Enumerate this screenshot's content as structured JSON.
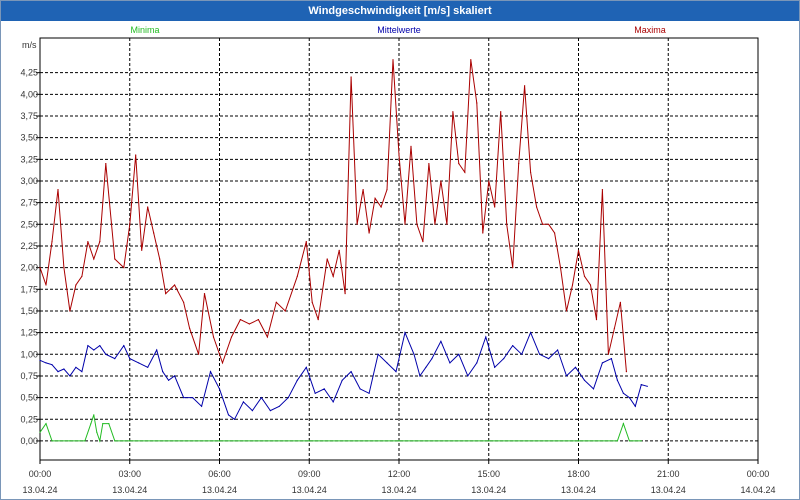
{
  "title": "Windgeschwindigkeit [m/s] skaliert",
  "colors": {
    "title_bg": "#1f63b4",
    "min": "#22bb22",
    "mean": "#0000aa",
    "max": "#aa0000",
    "grid": "#000000"
  },
  "chart_data": {
    "type": "line",
    "title": "Windgeschwindigkeit [m/s] skaliert",
    "ylabel": "m/s",
    "ylim": [
      -0.22,
      4.65
    ],
    "y_ticks": [
      "0,00",
      "0,25",
      "0,50",
      "0,75",
      "1,00",
      "1,25",
      "1,50",
      "1,75",
      "2,00",
      "2,25",
      "2,50",
      "2,75",
      "3,00",
      "3,25",
      "3,50",
      "3,75",
      "4,00",
      "4,25"
    ],
    "xlim_hours": [
      0,
      24
    ],
    "x_ticks": [
      {
        "time": "00:00",
        "date": "13.04.24"
      },
      {
        "time": "03:00",
        "date": "13.04.24"
      },
      {
        "time": "06:00",
        "date": "13.04.24"
      },
      {
        "time": "09:00",
        "date": "13.04.24"
      },
      {
        "time": "12:00",
        "date": "13.04.24"
      },
      {
        "time": "15:00",
        "date": "13.04.24"
      },
      {
        "time": "18:00",
        "date": "13.04.24"
      },
      {
        "time": "21:00",
        "date": "13.04.24"
      },
      {
        "time": "00:00",
        "date": "14.04.24"
      }
    ],
    "grid": true,
    "legend_position": "top",
    "series": [
      {
        "name": "Minima",
        "color": "#22bb22",
        "points": [
          [
            0,
            0.1
          ],
          [
            0.2,
            0.2
          ],
          [
            0.4,
            0
          ],
          [
            1.0,
            0
          ],
          [
            1.5,
            0
          ],
          [
            1.7,
            0.2
          ],
          [
            1.8,
            0.3
          ],
          [
            1.9,
            0.1
          ],
          [
            2.0,
            0
          ],
          [
            2.1,
            0.2
          ],
          [
            2.3,
            0.2
          ],
          [
            2.5,
            0
          ],
          [
            3,
            0
          ],
          [
            6,
            0
          ],
          [
            9,
            0
          ],
          [
            12,
            0
          ],
          [
            15,
            0
          ],
          [
            18,
            0
          ],
          [
            19.3,
            0
          ],
          [
            19.5,
            0.2
          ],
          [
            19.7,
            0
          ],
          [
            20.1,
            0
          ]
        ]
      },
      {
        "name": "Mittelwerte",
        "color": "#0000aa",
        "points": [
          [
            0,
            0.93
          ],
          [
            0.2,
            0.9
          ],
          [
            0.4,
            0.88
          ],
          [
            0.6,
            0.8
          ],
          [
            0.8,
            0.83
          ],
          [
            1.0,
            0.75
          ],
          [
            1.2,
            0.85
          ],
          [
            1.4,
            0.8
          ],
          [
            1.6,
            1.1
          ],
          [
            1.8,
            1.05
          ],
          [
            2.0,
            1.1
          ],
          [
            2.2,
            1.0
          ],
          [
            2.5,
            0.95
          ],
          [
            2.8,
            1.1
          ],
          [
            3.0,
            0.95
          ],
          [
            3.3,
            0.9
          ],
          [
            3.6,
            0.85
          ],
          [
            3.9,
            1.05
          ],
          [
            4.1,
            0.8
          ],
          [
            4.3,
            0.7
          ],
          [
            4.5,
            0.75
          ],
          [
            4.8,
            0.5
          ],
          [
            5.1,
            0.5
          ],
          [
            5.4,
            0.4
          ],
          [
            5.7,
            0.8
          ],
          [
            6.0,
            0.6
          ],
          [
            6.3,
            0.3
          ],
          [
            6.5,
            0.25
          ],
          [
            6.8,
            0.45
          ],
          [
            7.1,
            0.35
          ],
          [
            7.4,
            0.5
          ],
          [
            7.7,
            0.35
          ],
          [
            8.0,
            0.4
          ],
          [
            8.3,
            0.5
          ],
          [
            8.6,
            0.7
          ],
          [
            8.9,
            0.85
          ],
          [
            9.2,
            0.55
          ],
          [
            9.5,
            0.6
          ],
          [
            9.8,
            0.45
          ],
          [
            10.1,
            0.7
          ],
          [
            10.4,
            0.8
          ],
          [
            10.7,
            0.6
          ],
          [
            11.0,
            0.55
          ],
          [
            11.3,
            1.0
          ],
          [
            11.6,
            0.9
          ],
          [
            11.9,
            0.8
          ],
          [
            12.2,
            1.25
          ],
          [
            12.5,
            1.0
          ],
          [
            12.7,
            0.75
          ],
          [
            12.9,
            0.85
          ],
          [
            13.1,
            0.95
          ],
          [
            13.4,
            1.15
          ],
          [
            13.7,
            0.9
          ],
          [
            14.0,
            1.0
          ],
          [
            14.3,
            0.75
          ],
          [
            14.6,
            0.9
          ],
          [
            14.9,
            1.2
          ],
          [
            15.2,
            0.85
          ],
          [
            15.5,
            0.95
          ],
          [
            15.8,
            1.1
          ],
          [
            16.1,
            1.0
          ],
          [
            16.4,
            1.25
          ],
          [
            16.7,
            1.0
          ],
          [
            17.0,
            0.95
          ],
          [
            17.3,
            1.05
          ],
          [
            17.6,
            0.75
          ],
          [
            17.9,
            0.85
          ],
          [
            18.2,
            0.7
          ],
          [
            18.5,
            0.6
          ],
          [
            18.8,
            0.9
          ],
          [
            19.1,
            0.95
          ],
          [
            19.3,
            0.7
          ],
          [
            19.5,
            0.55
          ],
          [
            19.7,
            0.5
          ],
          [
            19.9,
            0.4
          ],
          [
            20.1,
            0.65
          ],
          [
            20.3,
            0.63
          ]
        ]
      },
      {
        "name": "Maxima",
        "color": "#aa0000",
        "points": [
          [
            0,
            2.0
          ],
          [
            0.2,
            1.8
          ],
          [
            0.4,
            2.3
          ],
          [
            0.6,
            2.9
          ],
          [
            0.8,
            2.0
          ],
          [
            1.0,
            1.5
          ],
          [
            1.2,
            1.8
          ],
          [
            1.4,
            1.9
          ],
          [
            1.6,
            2.3
          ],
          [
            1.8,
            2.1
          ],
          [
            2.0,
            2.3
          ],
          [
            2.2,
            3.2
          ],
          [
            2.5,
            2.1
          ],
          [
            2.8,
            2.0
          ],
          [
            3.0,
            2.5
          ],
          [
            3.2,
            3.3
          ],
          [
            3.4,
            2.2
          ],
          [
            3.6,
            2.7
          ],
          [
            3.8,
            2.4
          ],
          [
            4.0,
            2.1
          ],
          [
            4.2,
            1.7
          ],
          [
            4.5,
            1.8
          ],
          [
            4.8,
            1.6
          ],
          [
            5.0,
            1.3
          ],
          [
            5.3,
            1.0
          ],
          [
            5.5,
            1.7
          ],
          [
            5.8,
            1.2
          ],
          [
            6.1,
            0.9
          ],
          [
            6.4,
            1.2
          ],
          [
            6.7,
            1.4
          ],
          [
            7.0,
            1.35
          ],
          [
            7.3,
            1.4
          ],
          [
            7.6,
            1.2
          ],
          [
            7.9,
            1.6
          ],
          [
            8.2,
            1.5
          ],
          [
            8.6,
            1.9
          ],
          [
            8.9,
            2.3
          ],
          [
            9.1,
            1.6
          ],
          [
            9.3,
            1.4
          ],
          [
            9.6,
            2.1
          ],
          [
            9.8,
            1.9
          ],
          [
            10.0,
            2.2
          ],
          [
            10.2,
            1.7
          ],
          [
            10.4,
            4.2
          ],
          [
            10.6,
            2.5
          ],
          [
            10.8,
            2.9
          ],
          [
            11.0,
            2.4
          ],
          [
            11.2,
            2.8
          ],
          [
            11.4,
            2.7
          ],
          [
            11.6,
            2.9
          ],
          [
            11.8,
            4.4
          ],
          [
            12.0,
            3.3
          ],
          [
            12.2,
            2.5
          ],
          [
            12.4,
            3.4
          ],
          [
            12.6,
            2.5
          ],
          [
            12.8,
            2.3
          ],
          [
            13.0,
            3.2
          ],
          [
            13.2,
            2.5
          ],
          [
            13.4,
            3.0
          ],
          [
            13.6,
            2.5
          ],
          [
            13.8,
            3.8
          ],
          [
            14.0,
            3.2
          ],
          [
            14.2,
            3.1
          ],
          [
            14.4,
            4.4
          ],
          [
            14.6,
            3.9
          ],
          [
            14.8,
            2.4
          ],
          [
            15.0,
            3.0
          ],
          [
            15.2,
            2.7
          ],
          [
            15.4,
            3.8
          ],
          [
            15.6,
            2.5
          ],
          [
            15.8,
            2.0
          ],
          [
            16.0,
            3.2
          ],
          [
            16.2,
            4.1
          ],
          [
            16.4,
            3.1
          ],
          [
            16.6,
            2.7
          ],
          [
            16.8,
            2.5
          ],
          [
            17.0,
            2.5
          ],
          [
            17.2,
            2.4
          ],
          [
            17.4,
            2.0
          ],
          [
            17.6,
            1.5
          ],
          [
            17.8,
            1.8
          ],
          [
            18.0,
            2.2
          ],
          [
            18.2,
            1.9
          ],
          [
            18.4,
            1.8
          ],
          [
            18.6,
            1.4
          ],
          [
            18.8,
            2.9
          ],
          [
            19.0,
            1.0
          ],
          [
            19.2,
            1.3
          ],
          [
            19.4,
            1.6
          ],
          [
            19.6,
            0.8
          ]
        ]
      }
    ]
  }
}
